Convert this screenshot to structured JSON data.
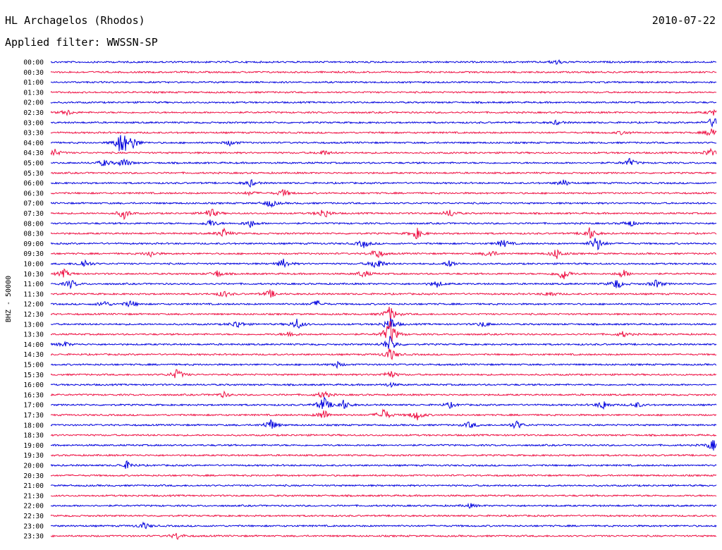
{
  "header": {
    "title": "HL Archagelos (Rhodos)",
    "filter": "Applied filter: WWSSN-SP",
    "date": "2010-07-22"
  },
  "colors": {
    "blue": "#0000dd",
    "red": "#ee1144"
  },
  "chart_data": {
    "type": "line",
    "ylabel": "BHZ - 50000",
    "trace_colors": [
      "#0000dd",
      "#ee1144"
    ],
    "rows": [
      {
        "label": "00:00",
        "events": [
          [
            0.76,
            4
          ]
        ]
      },
      {
        "label": "00:30",
        "events": []
      },
      {
        "label": "01:00",
        "events": []
      },
      {
        "label": "01:30",
        "events": []
      },
      {
        "label": "02:00",
        "events": []
      },
      {
        "label": "02:30",
        "events": [
          [
            0.025,
            4
          ],
          [
            0.995,
            4
          ]
        ]
      },
      {
        "label": "03:00",
        "events": [
          [
            0.76,
            3
          ],
          [
            0.995,
            8
          ]
        ]
      },
      {
        "label": "03:30",
        "events": [
          [
            0.86,
            3
          ],
          [
            0.995,
            10
          ]
        ]
      },
      {
        "label": "04:00",
        "events": [
          [
            0.107,
            22
          ],
          [
            0.125,
            7
          ],
          [
            0.27,
            4
          ]
        ]
      },
      {
        "label": "04:30",
        "events": [
          [
            0.005,
            6
          ],
          [
            0.41,
            4
          ],
          [
            0.99,
            6
          ]
        ]
      },
      {
        "label": "05:00",
        "events": [
          [
            0.08,
            5
          ],
          [
            0.11,
            7
          ],
          [
            0.87,
            6
          ]
        ]
      },
      {
        "label": "05:30",
        "events": []
      },
      {
        "label": "06:00",
        "events": [
          [
            0.3,
            5
          ],
          [
            0.77,
            5
          ]
        ]
      },
      {
        "label": "06:30",
        "events": [
          [
            0.35,
            6
          ],
          [
            0.3,
            3
          ]
        ]
      },
      {
        "label": "07:00",
        "events": [
          [
            0.33,
            6
          ]
        ]
      },
      {
        "label": "07:30",
        "events": [
          [
            0.11,
            8
          ],
          [
            0.24,
            8
          ],
          [
            0.41,
            8
          ],
          [
            0.6,
            6
          ]
        ]
      },
      {
        "label": "08:00",
        "events": [
          [
            0.24,
            6
          ],
          [
            0.3,
            6
          ],
          [
            0.87,
            5
          ]
        ]
      },
      {
        "label": "08:30",
        "events": [
          [
            0.26,
            7
          ],
          [
            0.55,
            8
          ],
          [
            0.81,
            9
          ]
        ]
      },
      {
        "label": "09:00",
        "events": [
          [
            0.47,
            6
          ],
          [
            0.68,
            6
          ],
          [
            0.82,
            12
          ]
        ]
      },
      {
        "label": "09:30",
        "events": [
          [
            0.15,
            5
          ],
          [
            0.49,
            8
          ],
          [
            0.66,
            6
          ],
          [
            0.76,
            8
          ]
        ]
      },
      {
        "label": "10:00",
        "events": [
          [
            0.05,
            7
          ],
          [
            0.35,
            7
          ],
          [
            0.49,
            10
          ],
          [
            0.6,
            5
          ]
        ]
      },
      {
        "label": "10:30",
        "events": [
          [
            0.02,
            6
          ],
          [
            0.25,
            5
          ],
          [
            0.47,
            6
          ],
          [
            0.77,
            10
          ],
          [
            0.86,
            6
          ]
        ]
      },
      {
        "label": "11:00",
        "events": [
          [
            0.03,
            6
          ],
          [
            0.58,
            5
          ],
          [
            0.85,
            8
          ],
          [
            0.91,
            6
          ]
        ]
      },
      {
        "label": "11:30",
        "events": [
          [
            0.26,
            5
          ],
          [
            0.33,
            6
          ],
          [
            0.75,
            4
          ]
        ]
      },
      {
        "label": "12:00",
        "events": [
          [
            0.08,
            5
          ],
          [
            0.12,
            5
          ],
          [
            0.4,
            5
          ]
        ]
      },
      {
        "label": "12:30",
        "events": [
          [
            0.51,
            12
          ]
        ]
      },
      {
        "label": "13:00",
        "events": [
          [
            0.28,
            6
          ],
          [
            0.37,
            8
          ],
          [
            0.51,
            12
          ],
          [
            0.65,
            4
          ]
        ]
      },
      {
        "label": "13:30",
        "events": [
          [
            0.36,
            5
          ],
          [
            0.51,
            22
          ],
          [
            0.86,
            4
          ]
        ]
      },
      {
        "label": "14:00",
        "events": [
          [
            0.02,
            4
          ],
          [
            0.51,
            12
          ]
        ]
      },
      {
        "label": "14:30",
        "events": [
          [
            0.51,
            10
          ]
        ]
      },
      {
        "label": "15:00",
        "events": [
          [
            0.43,
            4
          ]
        ]
      },
      {
        "label": "15:30",
        "events": [
          [
            0.19,
            8
          ],
          [
            0.51,
            6
          ]
        ]
      },
      {
        "label": "16:00",
        "events": [
          [
            0.51,
            3
          ]
        ]
      },
      {
        "label": "16:30",
        "events": [
          [
            0.26,
            4
          ],
          [
            0.41,
            6
          ]
        ]
      },
      {
        "label": "17:00",
        "events": [
          [
            0.41,
            12
          ],
          [
            0.44,
            7
          ],
          [
            0.6,
            4
          ],
          [
            0.83,
            7
          ],
          [
            0.88,
            4
          ]
        ]
      },
      {
        "label": "17:30",
        "events": [
          [
            0.41,
            8
          ],
          [
            0.5,
            10
          ],
          [
            0.55,
            8
          ]
        ]
      },
      {
        "label": "18:00",
        "events": [
          [
            0.33,
            9
          ],
          [
            0.63,
            5
          ],
          [
            0.7,
            6
          ]
        ]
      },
      {
        "label": "18:30",
        "events": []
      },
      {
        "label": "19:00",
        "events": [
          [
            0.995,
            8
          ]
        ]
      },
      {
        "label": "19:30",
        "events": []
      },
      {
        "label": "20:00",
        "events": [
          [
            0.115,
            6
          ]
        ]
      },
      {
        "label": "20:30",
        "events": []
      },
      {
        "label": "21:00",
        "events": []
      },
      {
        "label": "21:30",
        "events": []
      },
      {
        "label": "22:00",
        "events": [
          [
            0.63,
            3
          ]
        ]
      },
      {
        "label": "22:30",
        "events": []
      },
      {
        "label": "23:00",
        "events": [
          [
            0.14,
            5
          ]
        ]
      },
      {
        "label": "23:30",
        "events": [
          [
            0.19,
            5
          ]
        ]
      }
    ]
  }
}
